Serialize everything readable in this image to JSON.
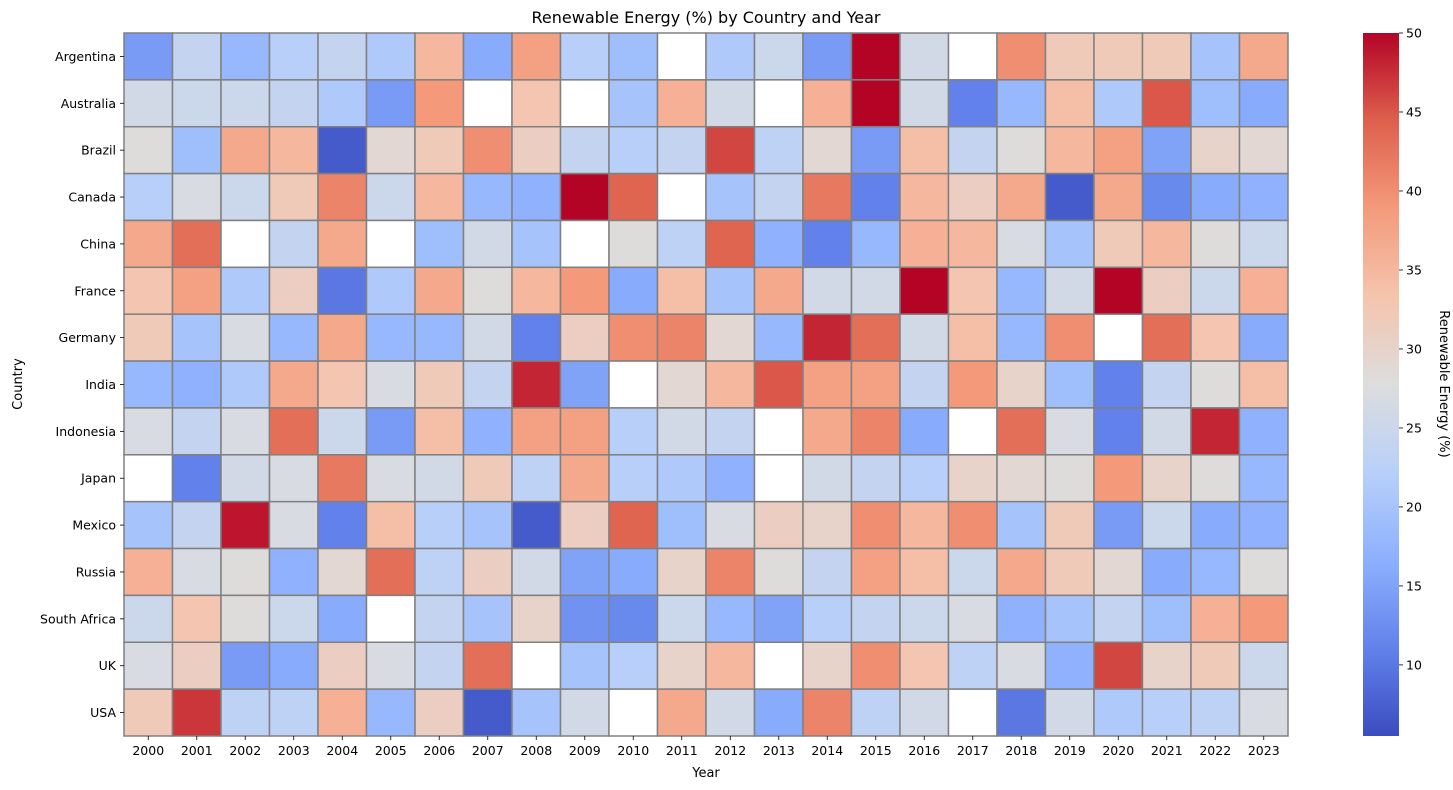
{
  "chart_data": {
    "type": "heatmap",
    "title": "Renewable Energy (%) by Country and Year",
    "xlabel": "Year",
    "ylabel": "Country",
    "colorbar_label": "Renewable Energy (%)",
    "colormap": "coolwarm",
    "vmin": 5.5,
    "vmax": 50,
    "colorbar_ticks": [
      10,
      15,
      20,
      25,
      30,
      35,
      40,
      45,
      50
    ],
    "grid": true,
    "missing_color": "#ffffff",
    "cell_border_color": "#808080",
    "x": [
      "2000",
      "2001",
      "2002",
      "2003",
      "2004",
      "2005",
      "2006",
      "2007",
      "2008",
      "2009",
      "2010",
      "2011",
      "2012",
      "2013",
      "2014",
      "2015",
      "2016",
      "2017",
      "2018",
      "2019",
      "2020",
      "2021",
      "2022",
      "2023"
    ],
    "y": [
      "Argentina",
      "Australia",
      "Brazil",
      "Canada",
      "China",
      "France",
      "Germany",
      "India",
      "Indonesia",
      "Japan",
      "Mexico",
      "Russia",
      "South Africa",
      "UK",
      "USA"
    ],
    "values": [
      [
        14,
        24,
        18,
        22,
        24,
        21,
        35,
        16,
        38,
        22,
        19,
        null,
        21,
        25,
        14,
        50,
        26,
        null,
        40,
        32,
        32,
        32,
        20,
        37
      ],
      [
        26,
        25,
        25,
        24,
        21,
        14,
        39,
        null,
        33,
        null,
        20,
        36,
        26,
        null,
        36,
        50,
        26,
        11,
        18,
        34,
        21,
        45,
        19,
        16
      ],
      [
        28,
        19,
        37,
        35,
        7,
        29,
        32,
        40,
        31,
        24,
        22,
        24,
        46,
        23,
        29,
        14,
        34,
        24,
        28,
        35,
        38,
        15,
        30,
        29
      ],
      [
        22,
        27,
        25,
        32,
        41,
        25,
        35,
        18,
        17,
        50,
        44,
        null,
        20,
        24,
        42,
        11,
        35,
        31,
        37,
        7,
        37,
        12,
        16,
        17
      ],
      [
        37,
        43,
        null,
        24,
        37,
        null,
        19,
        26,
        20,
        null,
        28,
        23,
        44,
        17,
        11,
        18,
        36,
        35,
        27,
        20,
        32,
        35,
        28,
        25
      ],
      [
        33,
        38,
        21,
        31,
        10,
        21,
        37,
        28,
        35,
        39,
        16,
        34,
        20,
        37,
        26,
        26,
        50,
        33,
        18,
        26,
        50,
        31,
        25,
        36
      ],
      [
        32,
        20,
        27,
        18,
        37,
        18,
        18,
        26,
        11,
        31,
        40,
        41,
        29,
        18,
        48,
        43,
        26,
        34,
        18,
        40,
        null,
        43,
        33,
        16
      ],
      [
        18,
        17,
        21,
        37,
        33,
        27,
        32,
        24,
        48,
        15,
        null,
        29,
        35,
        45,
        38,
        38,
        24,
        39,
        30,
        19,
        11,
        24,
        28,
        34
      ],
      [
        27,
        24,
        27,
        43,
        25,
        14,
        34,
        17,
        38,
        38,
        22,
        26,
        24,
        null,
        37,
        41,
        16,
        null,
        43,
        27,
        11,
        26,
        48,
        17
      ],
      [
        null,
        11,
        26,
        27,
        42,
        27,
        26,
        32,
        23,
        37,
        22,
        21,
        17,
        null,
        26,
        24,
        22,
        30,
        29,
        28,
        39,
        30,
        28,
        18
      ],
      [
        20,
        24,
        49,
        27,
        11,
        34,
        22,
        20,
        7,
        31,
        44,
        19,
        27,
        31,
        30,
        40,
        35,
        40,
        20,
        32,
        14,
        25,
        16,
        17
      ],
      [
        36,
        27,
        28,
        17,
        29,
        43,
        23,
        31,
        26,
        15,
        16,
        30,
        41,
        28,
        24,
        38,
        34,
        25,
        37,
        32,
        29,
        16,
        18,
        28
      ],
      [
        25,
        33,
        28,
        25,
        16,
        null,
        24,
        20,
        30,
        13,
        12,
        25,
        18,
        15,
        22,
        24,
        25,
        27,
        17,
        20,
        24,
        19,
        36,
        39
      ],
      [
        27,
        31,
        14,
        16,
        31,
        27,
        24,
        43,
        null,
        20,
        22,
        30,
        35,
        null,
        30,
        40,
        33,
        23,
        27,
        17,
        46,
        30,
        32,
        25
      ],
      [
        32,
        47,
        23,
        23,
        36,
        18,
        31,
        7,
        20,
        26,
        null,
        37,
        26,
        16,
        41,
        23,
        26,
        null,
        10,
        26,
        21,
        22,
        23,
        27
      ]
    ]
  }
}
